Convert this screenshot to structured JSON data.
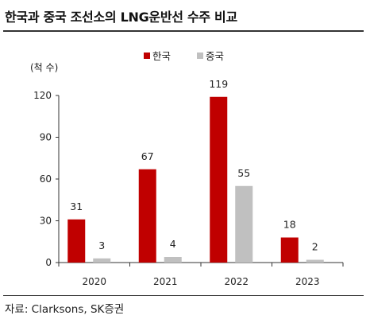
{
  "title": "한국과 중국 조선소의 LNG운반선 수주 비교",
  "source": "자료: Clarksons, SK증권",
  "colors": {
    "korea": "#c00000",
    "china": "#c0c0c0",
    "axis": "#333333"
  },
  "chart_data": {
    "type": "bar",
    "title": "한국과 중국 조선소의 LNG운반선 수주 비교",
    "ylabel": "(척 수)",
    "xlabel": "",
    "categories": [
      "2020",
      "2021",
      "2022",
      "2023"
    ],
    "series": [
      {
        "name": "한국",
        "values": [
          31,
          67,
          119,
          18
        ]
      },
      {
        "name": "중국",
        "values": [
          3,
          4,
          55,
          2
        ]
      }
    ],
    "ylim": [
      0,
      120
    ],
    "yticks": [
      0,
      30,
      60,
      90,
      120
    ],
    "grid": false,
    "legend": "top-center",
    "data_labels": true
  }
}
